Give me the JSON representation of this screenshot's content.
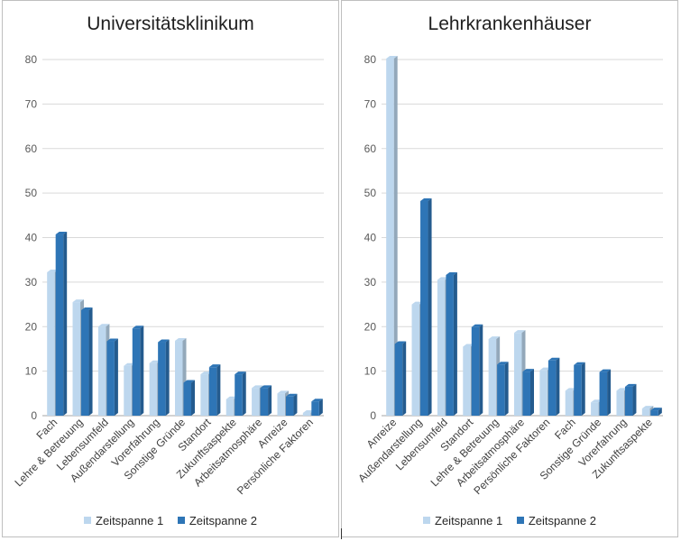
{
  "chart_data": [
    {
      "type": "bar",
      "title": "Universitätsklinikum",
      "categories": [
        "Fach",
        "Lehre & Betreuung",
        "Lebensumfeld",
        "Außendarstellung",
        "Vorerfahrung",
        "Sonstige Gründe",
        "Standort",
        "Zukunftsaspekte",
        "Arbeitsatmosphäre",
        "Anreize",
        "Persönliche Faktoren"
      ],
      "series": [
        {
          "name": "Zeitspanne 1",
          "color": "#bdd7ee",
          "values": [
            32.2,
            25.5,
            20,
            11.2,
            11.8,
            16.8,
            9.3,
            3.7,
            6.2,
            5,
            0.6
          ]
        },
        {
          "name": "Zeitspanne 2",
          "color": "#2e75b6",
          "values": [
            40.7,
            23.7,
            16.7,
            19.6,
            16.5,
            7.4,
            10.9,
            9.3,
            6.2,
            4.3,
            3.2
          ]
        }
      ],
      "ylim": [
        0,
        80
      ],
      "yticks": [
        0,
        10,
        20,
        30,
        40,
        50,
        60,
        70,
        80
      ],
      "grid": true,
      "legend": "bottom"
    },
    {
      "type": "bar",
      "title": "Lehrkrankenhäuser",
      "categories": [
        "Anreize",
        "Außendarstellung",
        "Lebensumfeld",
        "Standort",
        "Lehre & Betreuung",
        "Arbeitsatmosphäre",
        "Persönliche Faktoren",
        "Fach",
        "Sonstige Gründe",
        "Vorerfahrung",
        "Zukunftsaspekte"
      ],
      "series": [
        {
          "name": "Zeitspanne 1",
          "color": "#bdd7ee",
          "values": [
            80.2,
            25,
            30.5,
            15.5,
            17.2,
            18.6,
            10.2,
            5.6,
            3,
            5.6,
            1.6
          ]
        },
        {
          "name": "Zeitspanne 2",
          "color": "#2e75b6",
          "values": [
            16.1,
            48.2,
            31.6,
            19.9,
            11.5,
            9.9,
            12.4,
            11.4,
            9.8,
            6.5,
            1.2
          ]
        }
      ],
      "ylim": [
        0,
        80
      ],
      "yticks": [
        0,
        10,
        20,
        30,
        40,
        50,
        60,
        70,
        80
      ],
      "grid": true,
      "legend": "bottom"
    }
  ]
}
